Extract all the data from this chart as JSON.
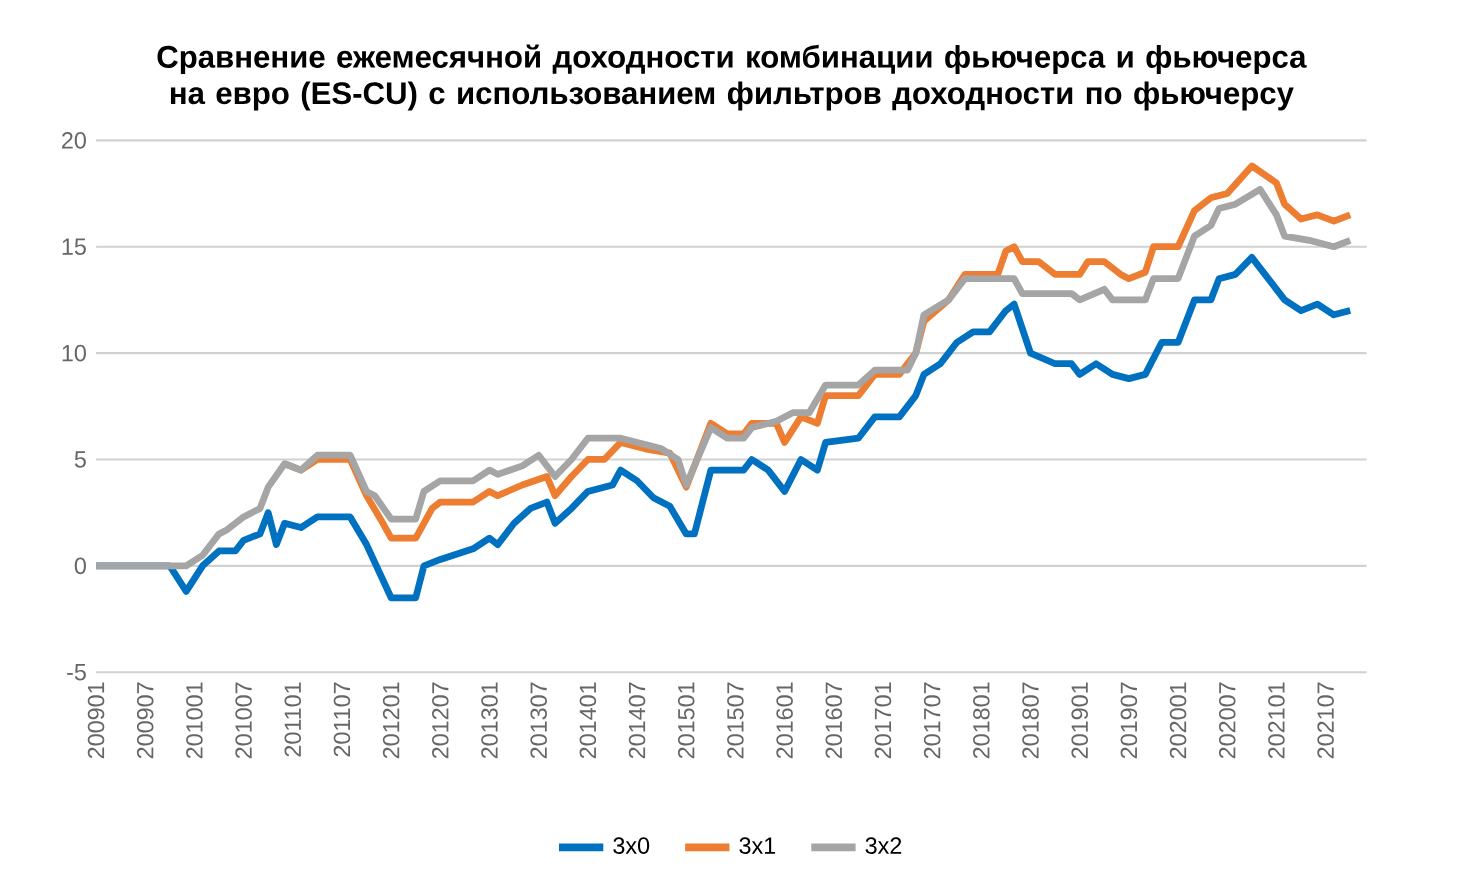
{
  "chart_data": {
    "type": "line",
    "title": "Сравнение ежемесячной доходности комбинации фьючерса и фьючерса на евро (ES-CU) с использованием фильтров доходности по фьючерсу",
    "xlim": [
      "2009-01",
      "2021-12"
    ],
    "ylim": [
      -5,
      20
    ],
    "yticks": [
      -5,
      0,
      5,
      10,
      15,
      20
    ],
    "xticks": [
      {
        "value": "2009-01",
        "label": "200901"
      },
      {
        "value": "2009-07",
        "label": "200907"
      },
      {
        "value": "2010-01",
        "label": "201001"
      },
      {
        "value": "2010-07",
        "label": "201007"
      },
      {
        "value": "2011-01",
        "label": "201101"
      },
      {
        "value": "2011-07",
        "label": "201107"
      },
      {
        "value": "2012-01",
        "label": "201201"
      },
      {
        "value": "2012-07",
        "label": "201207"
      },
      {
        "value": "2013-01",
        "label": "201301"
      },
      {
        "value": "2013-07",
        "label": "201307"
      },
      {
        "value": "2014-01",
        "label": "201401"
      },
      {
        "value": "2014-07",
        "label": "201407"
      },
      {
        "value": "2015-01",
        "label": "201501"
      },
      {
        "value": "2015-07",
        "label": "201507"
      },
      {
        "value": "2016-01",
        "label": "201601"
      },
      {
        "value": "2016-07",
        "label": "201607"
      },
      {
        "value": "2017-01",
        "label": "201701"
      },
      {
        "value": "2017-07",
        "label": "201707"
      },
      {
        "value": "2018-01",
        "label": "201801"
      },
      {
        "value": "2018-07",
        "label": "201807"
      },
      {
        "value": "2019-01",
        "label": "201901"
      },
      {
        "value": "2019-07",
        "label": "201907"
      },
      {
        "value": "2020-01",
        "label": "202001"
      },
      {
        "value": "2020-07",
        "label": "202007"
      },
      {
        "value": "2021-01",
        "label": "202101"
      },
      {
        "value": "2021-07",
        "label": "202107"
      }
    ],
    "grid": "y",
    "legend": "bottom",
    "marker": "none",
    "line_style": "solid",
    "series": [
      {
        "name": "3x0",
        "color": "#0070c0",
        "x": [
          "2009-01",
          "2009-10",
          "2009-12",
          "2010-02",
          "2010-04",
          "2010-06",
          "2010-07",
          "2010-09",
          "2010-10",
          "2010-11",
          "2010-12",
          "2011-02",
          "2011-04",
          "2011-08",
          "2011-10",
          "2012-01",
          "2012-04",
          "2012-05",
          "2012-07",
          "2012-11",
          "2013-01",
          "2013-02",
          "2013-04",
          "2013-06",
          "2013-08",
          "2013-09",
          "2013-11",
          "2014-01",
          "2014-04",
          "2014-05",
          "2014-07",
          "2014-09",
          "2014-11",
          "2015-01",
          "2015-02",
          "2015-04",
          "2015-08",
          "2015-09",
          "2015-11",
          "2016-01",
          "2016-03",
          "2016-05",
          "2016-06",
          "2016-10",
          "2016-12",
          "2017-03",
          "2017-05",
          "2017-06",
          "2017-08",
          "2017-10",
          "2017-12",
          "2018-02",
          "2018-04",
          "2018-05",
          "2018-07",
          "2018-10",
          "2018-12",
          "2019-01",
          "2019-03",
          "2019-05",
          "2019-07",
          "2019-09",
          "2019-11",
          "2020-01",
          "2020-03",
          "2020-05",
          "2020-06",
          "2020-08",
          "2020-10",
          "2020-12",
          "2021-02",
          "2021-04",
          "2021-06",
          "2021-08",
          "2021-10"
        ],
        "values": [
          0,
          0,
          -1.2,
          0,
          0.7,
          0.7,
          1.2,
          1.5,
          2.5,
          1.0,
          2.0,
          1.8,
          2.3,
          2.3,
          1.0,
          -1.5,
          -1.5,
          0,
          0.3,
          0.8,
          1.3,
          1.0,
          2.0,
          2.7,
          3.0,
          2.0,
          2.7,
          3.5,
          3.8,
          4.5,
          4.0,
          3.2,
          2.8,
          1.5,
          1.5,
          4.5,
          4.5,
          5.0,
          4.5,
          3.5,
          5.0,
          4.5,
          5.8,
          6.0,
          7.0,
          7.0,
          8.0,
          9.0,
          9.5,
          10.5,
          11.0,
          11.0,
          12.0,
          12.3,
          10.0,
          9.5,
          9.5,
          9.0,
          9.5,
          9.0,
          8.8,
          9.0,
          10.5,
          10.5,
          12.5,
          12.5,
          13.5,
          13.7,
          14.5,
          13.5,
          12.5,
          12.0,
          12.3,
          11.8,
          12.0
        ]
      },
      {
        "name": "3x1",
        "color": "#ed7d31",
        "x": [
          "2010-12",
          "2011-02",
          "2011-04",
          "2011-08",
          "2011-10",
          "2011-12",
          "2012-01",
          "2012-04",
          "2012-06",
          "2012-07",
          "2012-11",
          "2013-01",
          "2013-02",
          "2013-05",
          "2013-08",
          "2013-09",
          "2013-11",
          "2014-01",
          "2014-03",
          "2014-05",
          "2014-08",
          "2014-11",
          "2015-01",
          "2015-04",
          "2015-06",
          "2015-08",
          "2015-09",
          "2015-12",
          "2016-01",
          "2016-03",
          "2016-05",
          "2016-06",
          "2016-10",
          "2016-12",
          "2017-03",
          "2017-05",
          "2017-06",
          "2017-09",
          "2017-11",
          "2018-03",
          "2018-04",
          "2018-05",
          "2018-06",
          "2018-08",
          "2018-10",
          "2019-01",
          "2019-02",
          "2019-04",
          "2019-06",
          "2019-07",
          "2019-09",
          "2019-10",
          "2020-01",
          "2020-03",
          "2020-05",
          "2020-07",
          "2020-10",
          "2021-01",
          "2021-02",
          "2021-04",
          "2021-06",
          "2021-08",
          "2021-10"
        ],
        "values": [
          4.8,
          4.5,
          5.0,
          5.0,
          3.3,
          2.0,
          1.3,
          1.3,
          2.7,
          3.0,
          3.0,
          3.5,
          3.3,
          3.8,
          4.2,
          3.3,
          4.2,
          5.0,
          5.0,
          5.8,
          5.5,
          5.3,
          3.7,
          6.7,
          6.2,
          6.2,
          6.7,
          6.7,
          5.8,
          7.0,
          6.7,
          8.0,
          8.0,
          9.0,
          9.0,
          10.0,
          11.5,
          12.5,
          13.7,
          13.7,
          14.8,
          15.0,
          14.3,
          14.3,
          13.7,
          13.7,
          14.3,
          14.3,
          13.7,
          13.5,
          13.8,
          15.0,
          15.0,
          16.7,
          17.3,
          17.5,
          18.8,
          18.0,
          17.0,
          16.3,
          16.5,
          16.2,
          16.5
        ]
      },
      {
        "name": "3x2",
        "color": "#a5a5a5",
        "x": [
          "2009-01",
          "2009-12",
          "2010-02",
          "2010-04",
          "2010-05",
          "2010-07",
          "2010-09",
          "2010-10",
          "2010-12",
          "2011-02",
          "2011-04",
          "2011-08",
          "2011-10",
          "2011-11",
          "2012-01",
          "2012-04",
          "2012-05",
          "2012-07",
          "2012-11",
          "2013-01",
          "2013-02",
          "2013-05",
          "2013-07",
          "2013-09",
          "2013-11",
          "2014-01",
          "2014-05",
          "2014-08",
          "2014-10",
          "2014-12",
          "2015-01",
          "2015-04",
          "2015-06",
          "2015-08",
          "2015-09",
          "2015-12",
          "2016-02",
          "2016-04",
          "2016-06",
          "2016-10",
          "2016-12",
          "2017-04",
          "2017-05",
          "2017-06",
          "2017-09",
          "2017-11",
          "2018-05",
          "2018-06",
          "2018-12",
          "2019-01",
          "2019-04",
          "2019-05",
          "2019-09",
          "2019-10",
          "2020-01",
          "2020-03",
          "2020-05",
          "2020-06",
          "2020-08",
          "2020-11",
          "2021-01",
          "2021-02",
          "2021-05",
          "2021-08",
          "2021-10"
        ],
        "values": [
          0,
          0,
          0.5,
          1.5,
          1.7,
          2.3,
          2.7,
          3.7,
          4.8,
          4.5,
          5.2,
          5.2,
          3.5,
          3.3,
          2.2,
          2.2,
          3.5,
          4.0,
          4.0,
          4.5,
          4.3,
          4.7,
          5.2,
          4.2,
          5.0,
          6.0,
          6.0,
          5.7,
          5.5,
          5.0,
          3.8,
          6.5,
          6.0,
          6.0,
          6.5,
          6.8,
          7.2,
          7.2,
          8.5,
          8.5,
          9.2,
          9.2,
          10.0,
          11.8,
          12.5,
          13.5,
          13.5,
          12.8,
          12.8,
          12.5,
          13.0,
          12.5,
          12.5,
          13.5,
          13.5,
          15.5,
          16.0,
          16.8,
          17.0,
          17.7,
          16.5,
          15.5,
          15.3,
          15.0,
          15.3
        ]
      }
    ]
  }
}
